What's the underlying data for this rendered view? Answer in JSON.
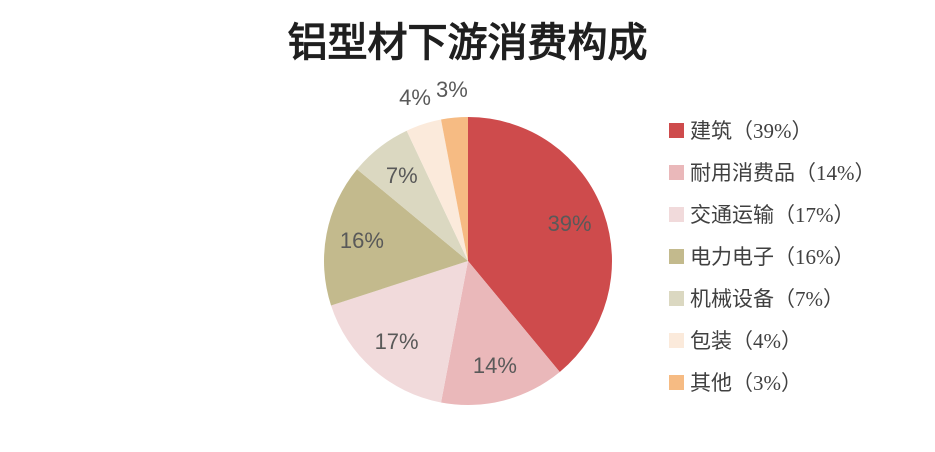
{
  "header": {
    "title": "铝型材下游消费构成"
  },
  "chart_data": {
    "type": "pie",
    "title": "铝型材下游消费构成",
    "categories": [
      "建筑",
      "耐用消费品",
      "交通运输",
      "电力电子",
      "机械设备",
      "包装",
      "其他"
    ],
    "values": [
      39,
      14,
      17,
      16,
      7,
      4,
      3
    ],
    "unit": "%",
    "start_angle_deg": 0,
    "direction": "clockwise",
    "colors": [
      "#CE4B4C",
      "#EAB8BA",
      "#F1DADB",
      "#C3BA8D",
      "#DBD8C1",
      "#FBEADB",
      "#F6BB83"
    ],
    "slice_labels": [
      "39%",
      "14%",
      "17%",
      "16%",
      "7%",
      "4%",
      "3%"
    ],
    "slice_label_color": "#595959",
    "legend_position": "right",
    "legend_labels": [
      "建筑（39%）",
      "耐用消费品（14%）",
      "交通运输（17%）",
      "电力电子（16%）",
      "机械设备（7%）",
      "包装（4%）",
      "其他（3%）"
    ]
  }
}
